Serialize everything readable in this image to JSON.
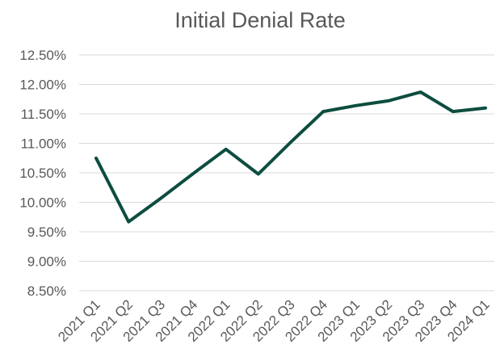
{
  "chart_data": {
    "type": "line",
    "title": "Initial Denial Rate",
    "xlabel": "",
    "ylabel": "",
    "categories": [
      "2021 Q1",
      "2021 Q2",
      "2021 Q3",
      "2021 Q4",
      "2022 Q1",
      "2022 Q2",
      "2022 Q3",
      "2022 Q4",
      "2023 Q1",
      "2023 Q2",
      "2023 Q3",
      "2023 Q4",
      "2024 Q1"
    ],
    "series": [
      {
        "values": [
          10.75,
          9.67,
          10.07,
          10.49,
          10.9,
          10.48,
          11.02,
          11.54,
          11.64,
          11.72,
          11.87,
          11.54,
          11.6
        ],
        "color": "#0d4d40"
      }
    ],
    "ylim": [
      8.5,
      12.5
    ],
    "yticks": [
      "12.50%",
      "12.00%",
      "11.50%",
      "11.00%",
      "10.50%",
      "10.00%",
      "9.50%",
      "9.00%",
      "8.50%"
    ],
    "ytick_values": [
      12.5,
      12.0,
      11.5,
      11.0,
      10.5,
      10.0,
      9.5,
      9.0,
      8.5
    ],
    "grid": true,
    "legend": "none"
  }
}
